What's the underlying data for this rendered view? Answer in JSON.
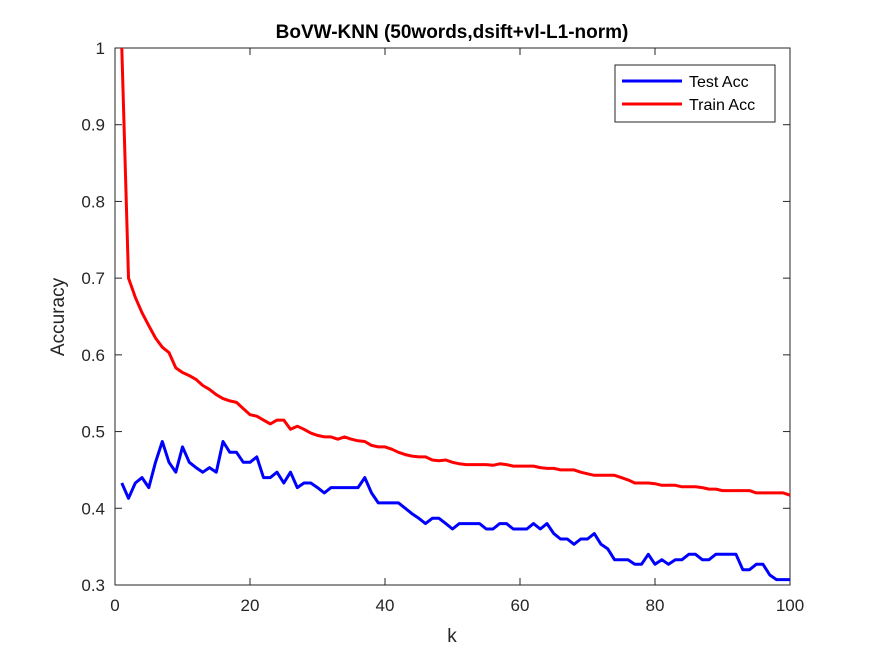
{
  "chart_data": {
    "type": "line",
    "title": "BoVW-KNN (50words,dsift+vl-L1-norm)",
    "xlabel": "k",
    "ylabel": "Accuracy",
    "xlim": [
      0,
      100
    ],
    "ylim": [
      0.3,
      1
    ],
    "xticks": [
      "0",
      "20",
      "40",
      "60",
      "80",
      "100"
    ],
    "yticks": [
      "0.3",
      "0.4",
      "0.5",
      "0.6",
      "0.7",
      "0.8",
      "0.9",
      "1"
    ],
    "grid": false,
    "legend_position": "top-right",
    "series": [
      {
        "name": "Test Acc",
        "color": "#0000ff",
        "x": [
          1,
          2,
          3,
          4,
          5,
          6,
          7,
          8,
          9,
          10,
          11,
          12,
          13,
          14,
          15,
          16,
          17,
          18,
          19,
          20,
          21,
          22,
          23,
          24,
          25,
          26,
          27,
          28,
          29,
          30,
          31,
          32,
          33,
          34,
          35,
          36,
          37,
          38,
          39,
          40,
          41,
          42,
          43,
          44,
          45,
          46,
          47,
          48,
          49,
          50,
          51,
          52,
          53,
          54,
          55,
          56,
          57,
          58,
          59,
          60,
          61,
          62,
          63,
          64,
          65,
          66,
          67,
          68,
          69,
          70,
          71,
          72,
          73,
          74,
          75,
          76,
          77,
          78,
          79,
          80,
          81,
          82,
          83,
          84,
          85,
          86,
          87,
          88,
          89,
          90,
          91,
          92,
          93,
          94,
          95,
          96,
          97,
          98,
          99,
          100
        ],
        "values": [
          0.433,
          0.413,
          0.433,
          0.44,
          0.427,
          0.46,
          0.487,
          0.46,
          0.447,
          0.48,
          0.46,
          0.453,
          0.447,
          0.453,
          0.447,
          0.487,
          0.473,
          0.473,
          0.46,
          0.46,
          0.467,
          0.44,
          0.44,
          0.447,
          0.433,
          0.447,
          0.427,
          0.433,
          0.433,
          0.427,
          0.42,
          0.427,
          0.427,
          0.427,
          0.427,
          0.427,
          0.44,
          0.42,
          0.407,
          0.407,
          0.407,
          0.407,
          0.4,
          0.393,
          0.387,
          0.38,
          0.387,
          0.387,
          0.38,
          0.373,
          0.38,
          0.38,
          0.38,
          0.38,
          0.373,
          0.373,
          0.38,
          0.38,
          0.373,
          0.373,
          0.373,
          0.38,
          0.373,
          0.38,
          0.367,
          0.36,
          0.36,
          0.353,
          0.36,
          0.36,
          0.367,
          0.353,
          0.347,
          0.333,
          0.333,
          0.333,
          0.327,
          0.327,
          0.34,
          0.327,
          0.333,
          0.327,
          0.333,
          0.333,
          0.34,
          0.34,
          0.333,
          0.333,
          0.34,
          0.34,
          0.34,
          0.34,
          0.32,
          0.32,
          0.327,
          0.327,
          0.313,
          0.307,
          0.307,
          0.307
        ]
      },
      {
        "name": "Train Acc",
        "color": "#ff0000",
        "x": [
          1,
          2,
          3,
          4,
          5,
          6,
          7,
          8,
          9,
          10,
          11,
          12,
          13,
          14,
          15,
          16,
          17,
          18,
          19,
          20,
          21,
          22,
          23,
          24,
          25,
          26,
          27,
          28,
          29,
          30,
          31,
          32,
          33,
          34,
          35,
          36,
          37,
          38,
          39,
          40,
          41,
          42,
          43,
          44,
          45,
          46,
          47,
          48,
          49,
          50,
          51,
          52,
          53,
          54,
          55,
          56,
          57,
          58,
          59,
          60,
          61,
          62,
          63,
          64,
          65,
          66,
          67,
          68,
          69,
          70,
          71,
          72,
          73,
          74,
          75,
          76,
          77,
          78,
          79,
          80,
          81,
          82,
          83,
          84,
          85,
          86,
          87,
          88,
          89,
          90,
          91,
          92,
          93,
          94,
          95,
          96,
          97,
          98,
          99,
          100
        ],
        "values": [
          1.0,
          0.7,
          0.675,
          0.655,
          0.638,
          0.622,
          0.61,
          0.603,
          0.583,
          0.577,
          0.573,
          0.568,
          0.56,
          0.555,
          0.548,
          0.543,
          0.54,
          0.538,
          0.53,
          0.522,
          0.52,
          0.515,
          0.51,
          0.515,
          0.515,
          0.503,
          0.507,
          0.503,
          0.498,
          0.495,
          0.493,
          0.493,
          0.49,
          0.493,
          0.49,
          0.488,
          0.487,
          0.482,
          0.48,
          0.48,
          0.477,
          0.473,
          0.47,
          0.468,
          0.467,
          0.467,
          0.463,
          0.462,
          0.463,
          0.46,
          0.458,
          0.457,
          0.457,
          0.457,
          0.457,
          0.456,
          0.458,
          0.457,
          0.455,
          0.455,
          0.455,
          0.455,
          0.453,
          0.452,
          0.452,
          0.45,
          0.45,
          0.45,
          0.447,
          0.445,
          0.443,
          0.443,
          0.443,
          0.443,
          0.44,
          0.437,
          0.433,
          0.433,
          0.433,
          0.432,
          0.43,
          0.43,
          0.43,
          0.428,
          0.428,
          0.428,
          0.427,
          0.425,
          0.425,
          0.423,
          0.423,
          0.423,
          0.423,
          0.423,
          0.42,
          0.42,
          0.42,
          0.42,
          0.42,
          0.417
        ]
      }
    ]
  }
}
